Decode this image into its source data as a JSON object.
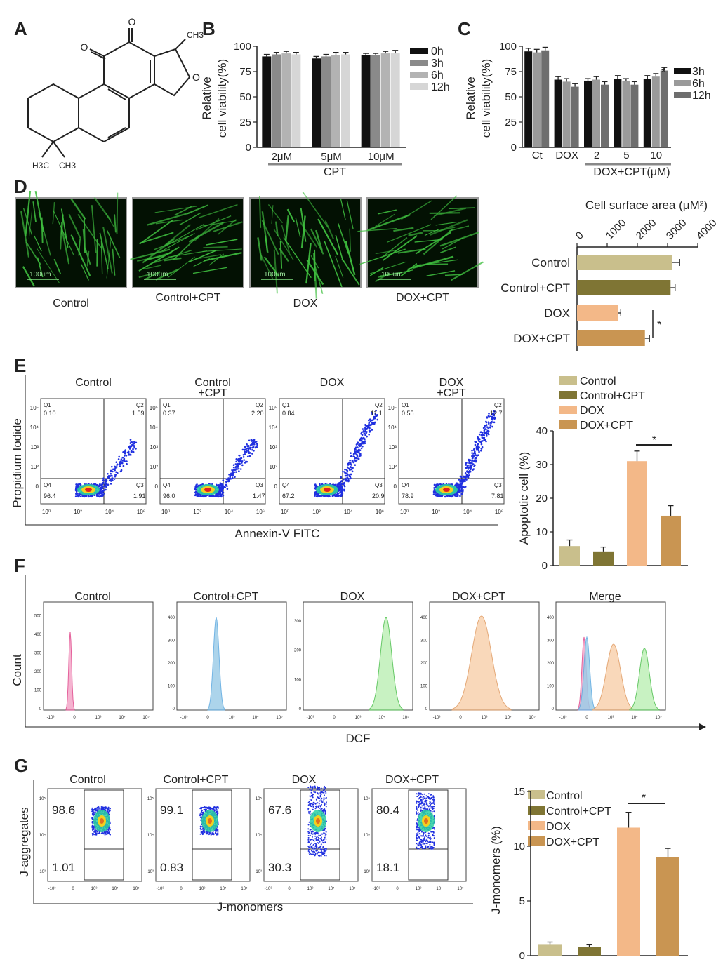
{
  "panels": {
    "A": "A",
    "B": "B",
    "C": "C",
    "D": "D",
    "E": "E",
    "F": "F",
    "G": "G"
  },
  "colors": {
    "control": "#c9bf8c",
    "control_cpt": "#7f7534",
    "dox": "#f3b888",
    "dox_cpt": "#c99552",
    "black": "#111111",
    "g1": "#8a8a8a",
    "g2": "#b3b3b3",
    "g3": "#d6d6d6",
    "blue": "#2030e0",
    "green_cells": "#3fbf3f",
    "pink": "#e0468a",
    "lblue": "#5aa8e0",
    "lgreen": "#7ee07e",
    "orange": "#f2b27a"
  },
  "structure": {
    "labels": [
      "O",
      "CH3",
      "O",
      "O",
      "H3C",
      "CH3"
    ]
  },
  "chart_data": [
    {
      "id": "B",
      "type": "bar",
      "ylabel": "Relative\ncell viability(%)",
      "yticks": [
        "0",
        "25",
        "50",
        "75",
        "100"
      ],
      "ylim": [
        0,
        100
      ],
      "categories": [
        "2μM",
        "5μM",
        "10μM"
      ],
      "group_label": "CPT",
      "series": [
        {
          "name": "0h",
          "values": [
            90,
            88,
            91
          ],
          "errors": [
            2,
            2,
            2
          ]
        },
        {
          "name": "3h",
          "values": [
            92,
            90,
            91
          ],
          "errors": [
            2,
            2,
            2
          ]
        },
        {
          "name": "6h",
          "values": [
            93,
            91,
            93
          ],
          "errors": [
            2,
            3,
            2
          ]
        },
        {
          "name": "12h",
          "values": [
            92,
            92,
            93
          ],
          "errors": [
            2,
            2,
            3
          ]
        }
      ]
    },
    {
      "id": "C",
      "type": "bar",
      "ylabel": "Relative\ncell viability(%)",
      "yticks": [
        "0",
        "25",
        "50",
        "75",
        "100"
      ],
      "ylim": [
        0,
        100
      ],
      "categories": [
        "Ct",
        "DOX",
        "2",
        "5",
        "10"
      ],
      "group_label": "DOX+CPT(μM)",
      "annotation": "*",
      "series": [
        {
          "name": "3h",
          "values": [
            95,
            67,
            66,
            68,
            68
          ],
          "errors": [
            3,
            3,
            2,
            3,
            3
          ]
        },
        {
          "name": "6h",
          "values": [
            94,
            65,
            67,
            66,
            70
          ],
          "errors": [
            3,
            3,
            3,
            2,
            3
          ]
        },
        {
          "name": "12h",
          "values": [
            96,
            60,
            62,
            62,
            76
          ],
          "errors": [
            3,
            3,
            3,
            3,
            3
          ]
        }
      ]
    },
    {
      "id": "D",
      "type": "bar",
      "title": "Cell surface area (μM²)",
      "xticks": [
        "0",
        "1000",
        "2000",
        "3000",
        "4000"
      ],
      "xlim": [
        0,
        4000
      ],
      "categories": [
        "Control",
        "Control+CPT",
        "DOX",
        "DOX+CPT"
      ],
      "values": [
        3150,
        3100,
        1350,
        2250
      ],
      "errors": [
        250,
        150,
        100,
        150
      ],
      "annotation": "*"
    },
    {
      "id": "E",
      "type": "bar",
      "ylabel": "Apoptotic cell (%)",
      "yticks": [
        "0",
        "10",
        "20",
        "30",
        "40"
      ],
      "ylim": [
        0,
        40
      ],
      "categories": [
        "Control",
        "Control+CPT",
        "DOX",
        "DOX+CPT"
      ],
      "values": [
        5.8,
        4.2,
        31,
        14.8
      ],
      "errors": [
        1.8,
        1.3,
        3,
        3
      ],
      "annotation": "*"
    },
    {
      "id": "G",
      "type": "bar",
      "ylabel": "J-monomers (%)",
      "yticks": [
        "0",
        "5",
        "10",
        "15"
      ],
      "ylim": [
        0,
        15
      ],
      "categories": [
        "Control",
        "Control+CPT",
        "DOX",
        "DOX+CPT"
      ],
      "values": [
        1.0,
        0.8,
        11.7,
        9.0
      ],
      "errors": [
        0.25,
        0.2,
        1.4,
        0.8
      ],
      "annotation": "*"
    }
  ],
  "micro": {
    "labels": [
      "Control",
      "Control+CPT",
      "DOX",
      "DOX+CPT"
    ],
    "scale": "100um"
  },
  "flow_e": {
    "titles": [
      "Control",
      "Control\n+CPT",
      "DOX",
      "DOX\n+CPT"
    ],
    "ylabel": "Propidium Iodide",
    "xlabel": "Annexin-V FITC",
    "quads": [
      [
        "0.10",
        "1.59",
        "96.4",
        "1.91"
      ],
      [
        "0.37",
        "2.20",
        "96.0",
        "1.47"
      ],
      [
        "0.84",
        "11.1",
        "67.2",
        "20.9"
      ],
      [
        "0.55",
        "12.7",
        "78.9",
        "7.81"
      ]
    ],
    "qnames": [
      "Q1",
      "Q2",
      "Q4",
      "Q3"
    ]
  },
  "hist_f": {
    "titles": [
      "Control",
      "Control+CPT",
      "DOX",
      "DOX+CPT",
      "Merge"
    ],
    "ylabel": "Count",
    "xlabel": "DCF",
    "yticks": [
      [
        "0",
        "100",
        "200",
        "300",
        "400",
        "500"
      ],
      [
        "0",
        "100",
        "200",
        "300",
        "400"
      ],
      [
        "0",
        "100",
        "200",
        "300"
      ],
      [
        "0",
        "100",
        "200",
        "300",
        "400"
      ],
      [
        "0",
        "100",
        "200",
        "300",
        "400"
      ]
    ]
  },
  "flow_g": {
    "titles": [
      "Control",
      "Control+CPT",
      "DOX",
      "DOX+CPT"
    ],
    "ylabel": "J-aggregates",
    "xlabel": "J-monomers",
    "upper": [
      "98.6",
      "99.1",
      "67.6",
      "80.4"
    ],
    "lower": [
      "1.01",
      "0.83",
      "30.3",
      "18.1"
    ]
  }
}
